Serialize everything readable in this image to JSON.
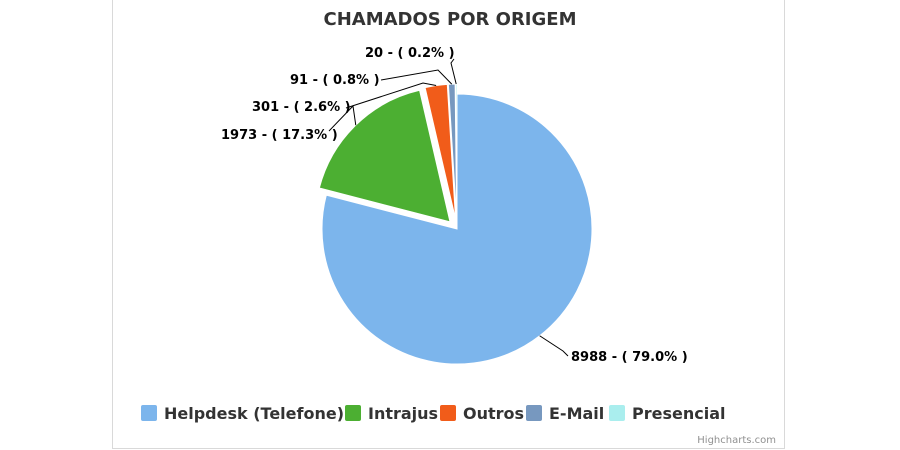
{
  "chart_data": {
    "type": "pie",
    "title": "CHAMADOS POR ORIGEM",
    "slices": [
      {
        "name": "Helpdesk (Telefone)",
        "value": 8988,
        "percent": 79.0,
        "label": "8988 - ( 79.0% )",
        "color": "#7cb5ec",
        "sliced": false
      },
      {
        "name": "Intrajus",
        "value": 1973,
        "percent": 17.3,
        "label": "1973 - ( 17.3% )",
        "color": "#4caf32",
        "sliced": true
      },
      {
        "name": "Outros",
        "value": 301,
        "percent": 2.6,
        "label": "301 - ( 2.6% )",
        "color": "#f15c1a",
        "sliced": true
      },
      {
        "name": "E-Mail",
        "value": 91,
        "percent": 0.8,
        "label": "91 - ( 0.8% )",
        "color": "#7798bf",
        "sliced": true
      },
      {
        "name": "Presencial",
        "value": 20,
        "percent": 0.2,
        "label": "20 - ( 0.2% )",
        "color": "#aaeeee",
        "sliced": true
      }
    ],
    "legend_position": "bottom",
    "credits": "Highcharts.com"
  }
}
